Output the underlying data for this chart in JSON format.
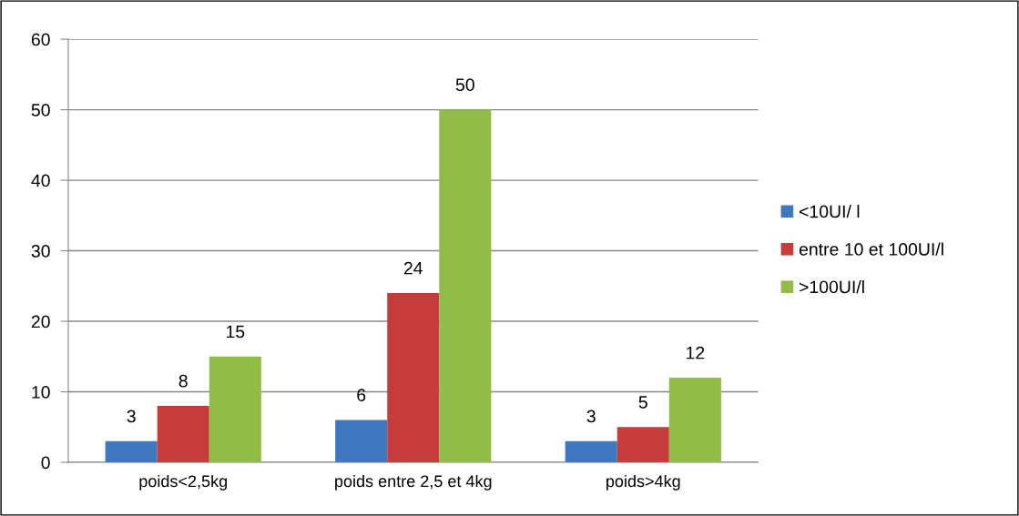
{
  "chart_data": {
    "type": "bar",
    "categories": [
      "poids<2,5kg",
      "poids entre 2,5 et 4kg",
      "poids>4kg"
    ],
    "series": [
      {
        "name": "<10UI/ l",
        "color": "#3f78c0",
        "values": [
          3,
          6,
          3
        ]
      },
      {
        "name": "entre 10 et 100UI/l",
        "color": "#c63c3a",
        "values": [
          8,
          24,
          5
        ]
      },
      {
        "name": ">100UI/l",
        "color": "#92bc48",
        "values": [
          15,
          50,
          12
        ]
      }
    ],
    "ylim": [
      0,
      60
    ],
    "yticks": [
      0,
      10,
      20,
      30,
      40,
      50,
      60
    ],
    "grid": "y",
    "legend": "right",
    "data_labels": true
  }
}
